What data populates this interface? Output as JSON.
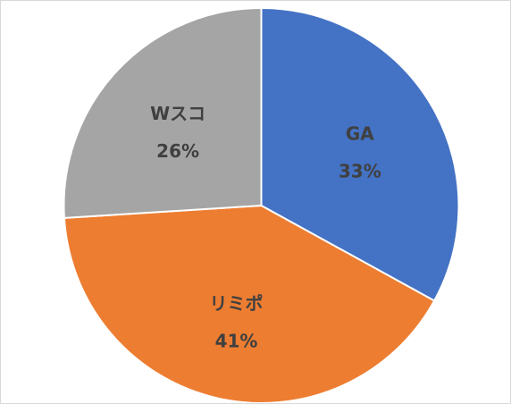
{
  "chart_data": {
    "type": "pie",
    "slices": [
      {
        "label": "GA",
        "value": 33,
        "value_label": "33%",
        "color": "#4472C4"
      },
      {
        "label": "リミポ",
        "value": 41,
        "value_label": "41%",
        "color": "#ED7D31"
      },
      {
        "label": "Wスコ",
        "value": 26,
        "value_label": "26%",
        "color": "#A5A5A5"
      }
    ],
    "start_angle": "12 o'clock",
    "direction": "clockwise",
    "legend": "none",
    "data_label_position": "inside"
  }
}
